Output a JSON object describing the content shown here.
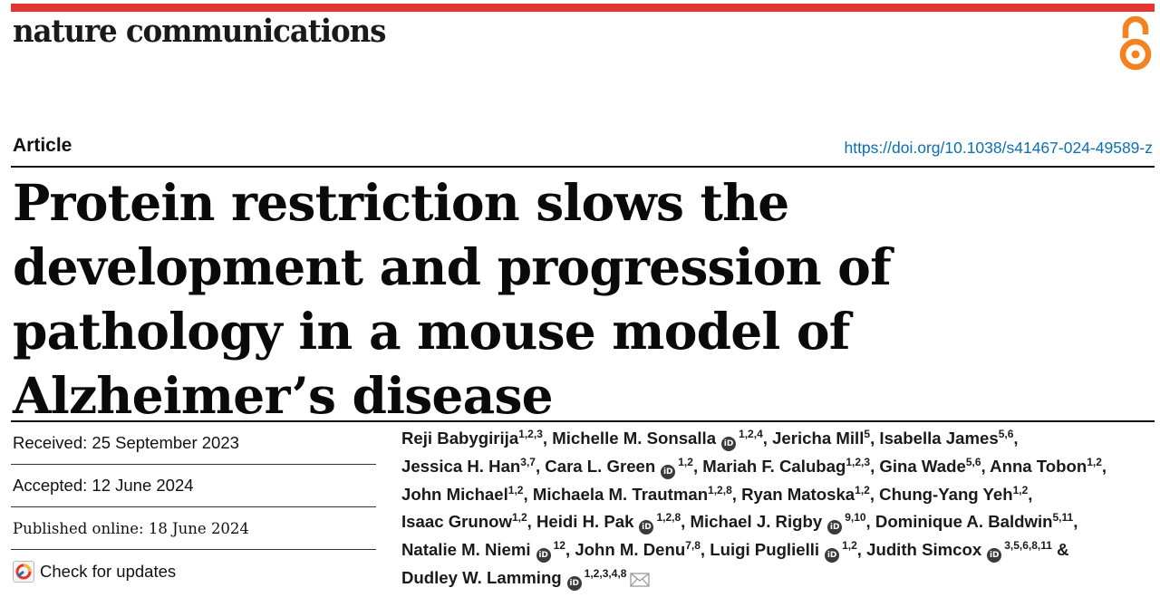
{
  "journal": {
    "name": "nature communications",
    "accent_color": "#e4362e",
    "open_access_icon": "open-access-icon",
    "open_access_color": "#f58220"
  },
  "article": {
    "type": "Article",
    "doi": "https://doi.org/10.1038/s41467-024-49589-z",
    "title": "Protein restriction slows the development and progression of pathology in a mouse model of Alzheimer’s disease"
  },
  "dates": {
    "received": "Received: 25 September 2023",
    "accepted": "Accepted: 12 June 2024",
    "published": "Published online: 18 June 2024",
    "check_updates": "Check for updates"
  },
  "authors": [
    {
      "name": "Reji Babygirija",
      "aff": "1,2,3",
      "orcid": false
    },
    {
      "name": "Michelle M. Sonsalla",
      "aff": "1,2,4",
      "orcid": true
    },
    {
      "name": "Jericha Mill",
      "aff": "5",
      "orcid": false
    },
    {
      "name": "Isabella James",
      "aff": "5,6",
      "orcid": false
    },
    {
      "name": "Jessica H. Han",
      "aff": "3,7",
      "orcid": false
    },
    {
      "name": "Cara L. Green",
      "aff": "1,2",
      "orcid": true
    },
    {
      "name": "Mariah F. Calubag",
      "aff": "1,2,3",
      "orcid": false
    },
    {
      "name": "Gina Wade",
      "aff": "5,6",
      "orcid": false
    },
    {
      "name": "Anna Tobon",
      "aff": "1,2",
      "orcid": false
    },
    {
      "name": "John Michael",
      "aff": "1,2",
      "orcid": false
    },
    {
      "name": "Michaela M. Trautman",
      "aff": "1,2,8",
      "orcid": false
    },
    {
      "name": "Ryan Matoska",
      "aff": "1,2",
      "orcid": false
    },
    {
      "name": "Chung-Yang Yeh",
      "aff": "1,2",
      "orcid": false
    },
    {
      "name": "Isaac Grunow",
      "aff": "1,2",
      "orcid": false
    },
    {
      "name": "Heidi H. Pak",
      "aff": "1,2,8",
      "orcid": true
    },
    {
      "name": "Michael J. Rigby",
      "aff": "9,10",
      "orcid": true
    },
    {
      "name": "Dominique A. Baldwin",
      "aff": "5,11",
      "orcid": false
    },
    {
      "name": "Natalie M. Niemi",
      "aff": "12",
      "orcid": true
    },
    {
      "name": "John M. Denu",
      "aff": "7,8",
      "orcid": false
    },
    {
      "name": "Luigi Puglielli",
      "aff": "1,2",
      "orcid": true
    },
    {
      "name": "Judith Simcox",
      "aff": "3,5,6,8,11",
      "orcid": true
    },
    {
      "name": "Dudley W. Lamming",
      "aff": "1,2,3,4,8",
      "orcid": true,
      "corresponding": true
    }
  ],
  "author_separators": {
    "comma": ",",
    "final": "&"
  },
  "orcid_icon_label": "iD"
}
